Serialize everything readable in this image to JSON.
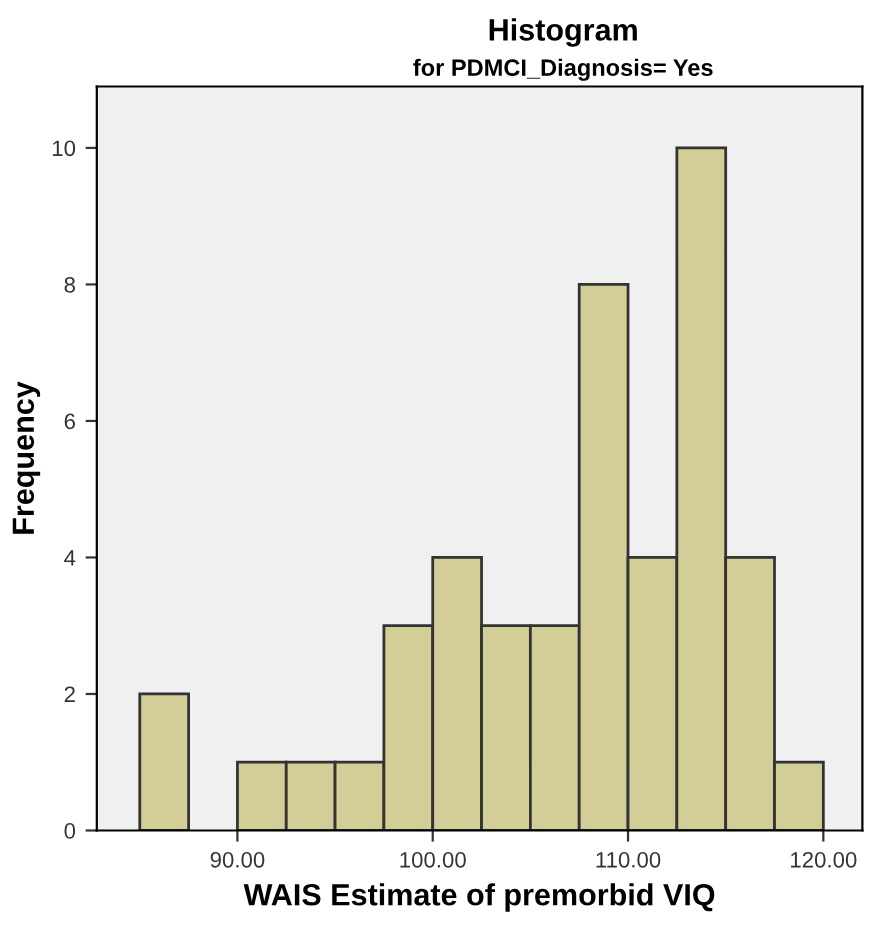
{
  "chart_data": {
    "type": "histogram",
    "title": "Histogram",
    "subtitle": "for PDMCI_Diagnosis= Yes",
    "xlabel": "WAIS Estimate of premorbid VIQ",
    "ylabel": "Frequency",
    "bins": [
      85,
      87.5,
      90,
      92.5,
      95,
      97.5,
      100,
      102.5,
      105,
      107.5,
      110,
      112.5,
      115,
      117.5,
      120
    ],
    "values": [
      2,
      0,
      1,
      1,
      1,
      3,
      4,
      3,
      3,
      8,
      4,
      10,
      4,
      1
    ],
    "color": "#d3ce97",
    "xlim": [
      82.8,
      122
    ],
    "xticks": [
      {
        "value": 90,
        "label": "90.00"
      },
      {
        "value": 100,
        "label": "100.00"
      },
      {
        "value": 110,
        "label": "110.00"
      },
      {
        "value": 120,
        "label": "120.00"
      }
    ],
    "ylim": [
      0,
      10.9
    ],
    "yticks": [
      0,
      2,
      4,
      6,
      8,
      10
    ],
    "grid": false
  }
}
